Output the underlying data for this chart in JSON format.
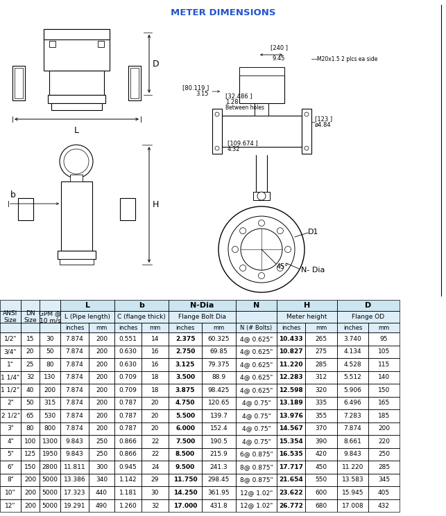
{
  "title": "METER DIMENSIONS",
  "rows": [
    [
      "1/2\"",
      "15",
      "30",
      "7.874",
      "200",
      "0.551",
      "14",
      "2.375",
      "60.325",
      "4@ 0.625\"",
      "10.433",
      "265",
      "3.740",
      "95"
    ],
    [
      "3/4\"",
      "20",
      "50",
      "7.874",
      "200",
      "0.630",
      "16",
      "2.750",
      "69.85",
      "4@ 0.625\"",
      "10.827",
      "275",
      "4.134",
      "105"
    ],
    [
      "1\"",
      "25",
      "80",
      "7.874",
      "200",
      "0.630",
      "16",
      "3.125",
      "79.375",
      "4@ 0.625\"",
      "11.220",
      "285",
      "4.528",
      "115"
    ],
    [
      "1 1/4\"",
      "32",
      "130",
      "7.874",
      "200",
      "0.709",
      "18",
      "3.500",
      "88.9",
      "4@ 0.625\"",
      "12.283",
      "312",
      "5.512",
      "140"
    ],
    [
      "1 1/2\"",
      "40",
      "200",
      "7.874",
      "200",
      "0.709",
      "18",
      "3.875",
      "98.425",
      "4@ 0.625\"",
      "12.598",
      "320",
      "5.906",
      "150"
    ],
    [
      "2\"",
      "50",
      "315",
      "7.874",
      "200",
      "0.787",
      "20",
      "4.750",
      "120.65",
      "4@ 0.75\"",
      "13.189",
      "335",
      "6.496",
      "165"
    ],
    [
      "2 1/2\"",
      "65",
      "530",
      "7.874",
      "200",
      "0.787",
      "20",
      "5.500",
      "139.7",
      "4@ 0.75\"",
      "13.976",
      "355",
      "7.283",
      "185"
    ],
    [
      "3\"",
      "80",
      "800",
      "7.874",
      "200",
      "0.787",
      "20",
      "6.000",
      "152.4",
      "4@ 0.75\"",
      "14.567",
      "370",
      "7.874",
      "200"
    ],
    [
      "4\"",
      "100",
      "1300",
      "9.843",
      "250",
      "0.866",
      "22",
      "7.500",
      "190.5",
      "4@ 0.75\"",
      "15.354",
      "390",
      "8.661",
      "220"
    ],
    [
      "5\"",
      "125",
      "1950",
      "9.843",
      "250",
      "0.866",
      "22",
      "8.500",
      "215.9",
      "6@ 0.875\"",
      "16.535",
      "420",
      "9.843",
      "250"
    ],
    [
      "6\"",
      "150",
      "2800",
      "11.811",
      "300",
      "0.945",
      "24",
      "9.500",
      "241.3",
      "8@ 0.875\"",
      "17.717",
      "450",
      "11.220",
      "285"
    ],
    [
      "8\"",
      "200",
      "5000",
      "13.386",
      "340",
      "1.142",
      "29",
      "11.750",
      "298.45",
      "8@ 0.875\"",
      "21.654",
      "550",
      "13.583",
      "345"
    ],
    [
      "10\"",
      "200",
      "5000",
      "17.323",
      "440",
      "1.181",
      "30",
      "14.250",
      "361.95",
      "12@ 1.02\"",
      "23.622",
      "600",
      "15.945",
      "405"
    ],
    [
      "12\"",
      "200",
      "5000",
      "19.291",
      "490",
      "1.260",
      "32",
      "17.000",
      "431.8",
      "12@ 1.02\"",
      "26.772",
      "680",
      "17.008",
      "432"
    ]
  ],
  "bold_cols": [
    7,
    10
  ],
  "col_positions": [
    0,
    30,
    57,
    87,
    128,
    165,
    204,
    243,
    291,
    340,
    399,
    440,
    486,
    531,
    576,
    643
  ]
}
